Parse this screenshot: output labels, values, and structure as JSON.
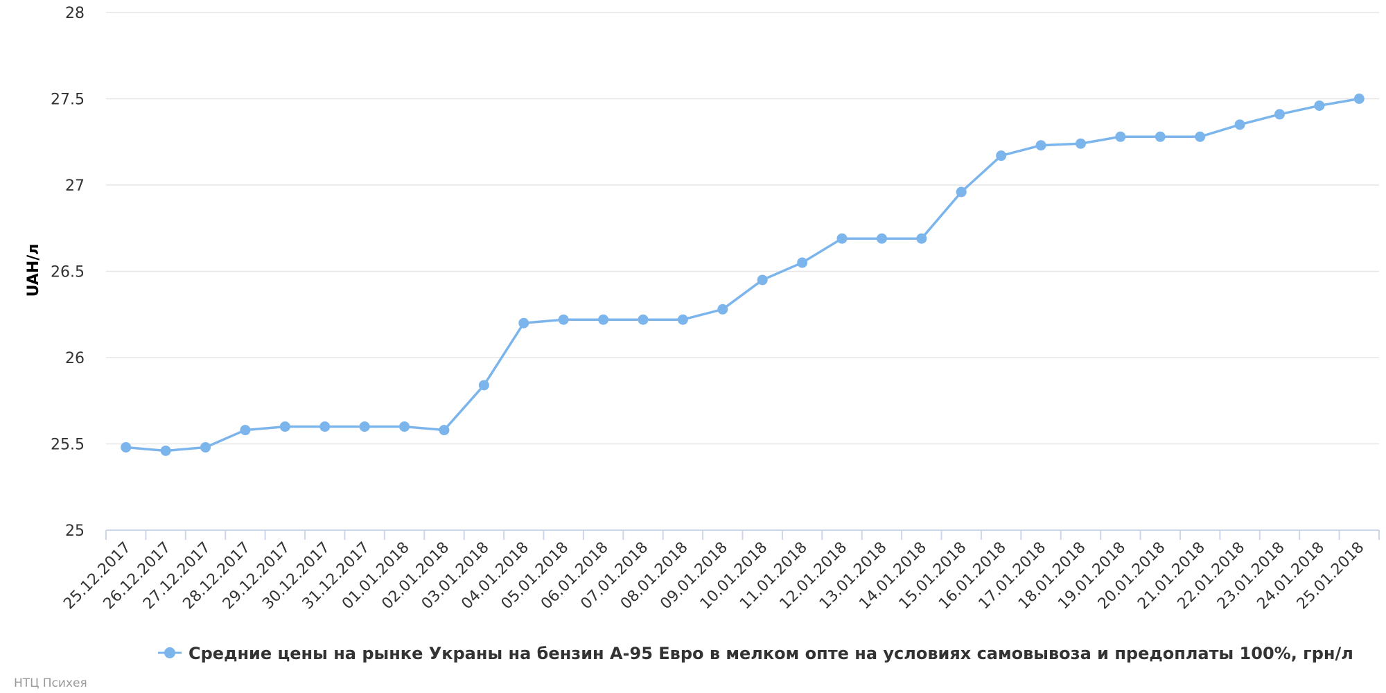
{
  "chart_data": {
    "type": "line",
    "ylabel": "UAH/л",
    "xlabel": "",
    "ylim": [
      25,
      28
    ],
    "yticks": [
      "25",
      "25.5",
      "26",
      "26.5",
      "27",
      "27.5",
      "28"
    ],
    "grid": true,
    "legend_position": "bottom",
    "categories": [
      "25.12.2017",
      "26.12.2017",
      "27.12.2017",
      "28.12.2017",
      "29.12.2017",
      "30.12.2017",
      "31.12.2017",
      "01.01.2018",
      "02.01.2018",
      "03.01.2018",
      "04.01.2018",
      "05.01.2018",
      "06.01.2018",
      "07.01.2018",
      "08.01.2018",
      "09.01.2018",
      "10.01.2018",
      "11.01.2018",
      "12.01.2018",
      "13.01.2018",
      "14.01.2018",
      "15.01.2018",
      "16.01.2018",
      "17.01.2018",
      "18.01.2018",
      "19.01.2018",
      "20.01.2018",
      "21.01.2018",
      "22.01.2018",
      "23.01.2018",
      "24.01.2018",
      "25.01.2018"
    ],
    "series": [
      {
        "name": "Средние цены на рынке Украны на бензин А-95 Евро в мелком опте на условиях самовывоза и предоплаты 100%, грн/л",
        "color": "#7cb5ec",
        "values": [
          25.48,
          25.46,
          25.48,
          25.58,
          25.6,
          25.6,
          25.6,
          25.6,
          25.58,
          25.84,
          26.2,
          26.22,
          26.22,
          26.22,
          26.22,
          26.28,
          26.45,
          26.55,
          26.69,
          26.69,
          26.69,
          26.96,
          27.17,
          27.23,
          27.24,
          27.28,
          27.28,
          27.28,
          27.35,
          27.41,
          27.46,
          27.5
        ]
      }
    ]
  },
  "credit": "НТЦ Психея"
}
